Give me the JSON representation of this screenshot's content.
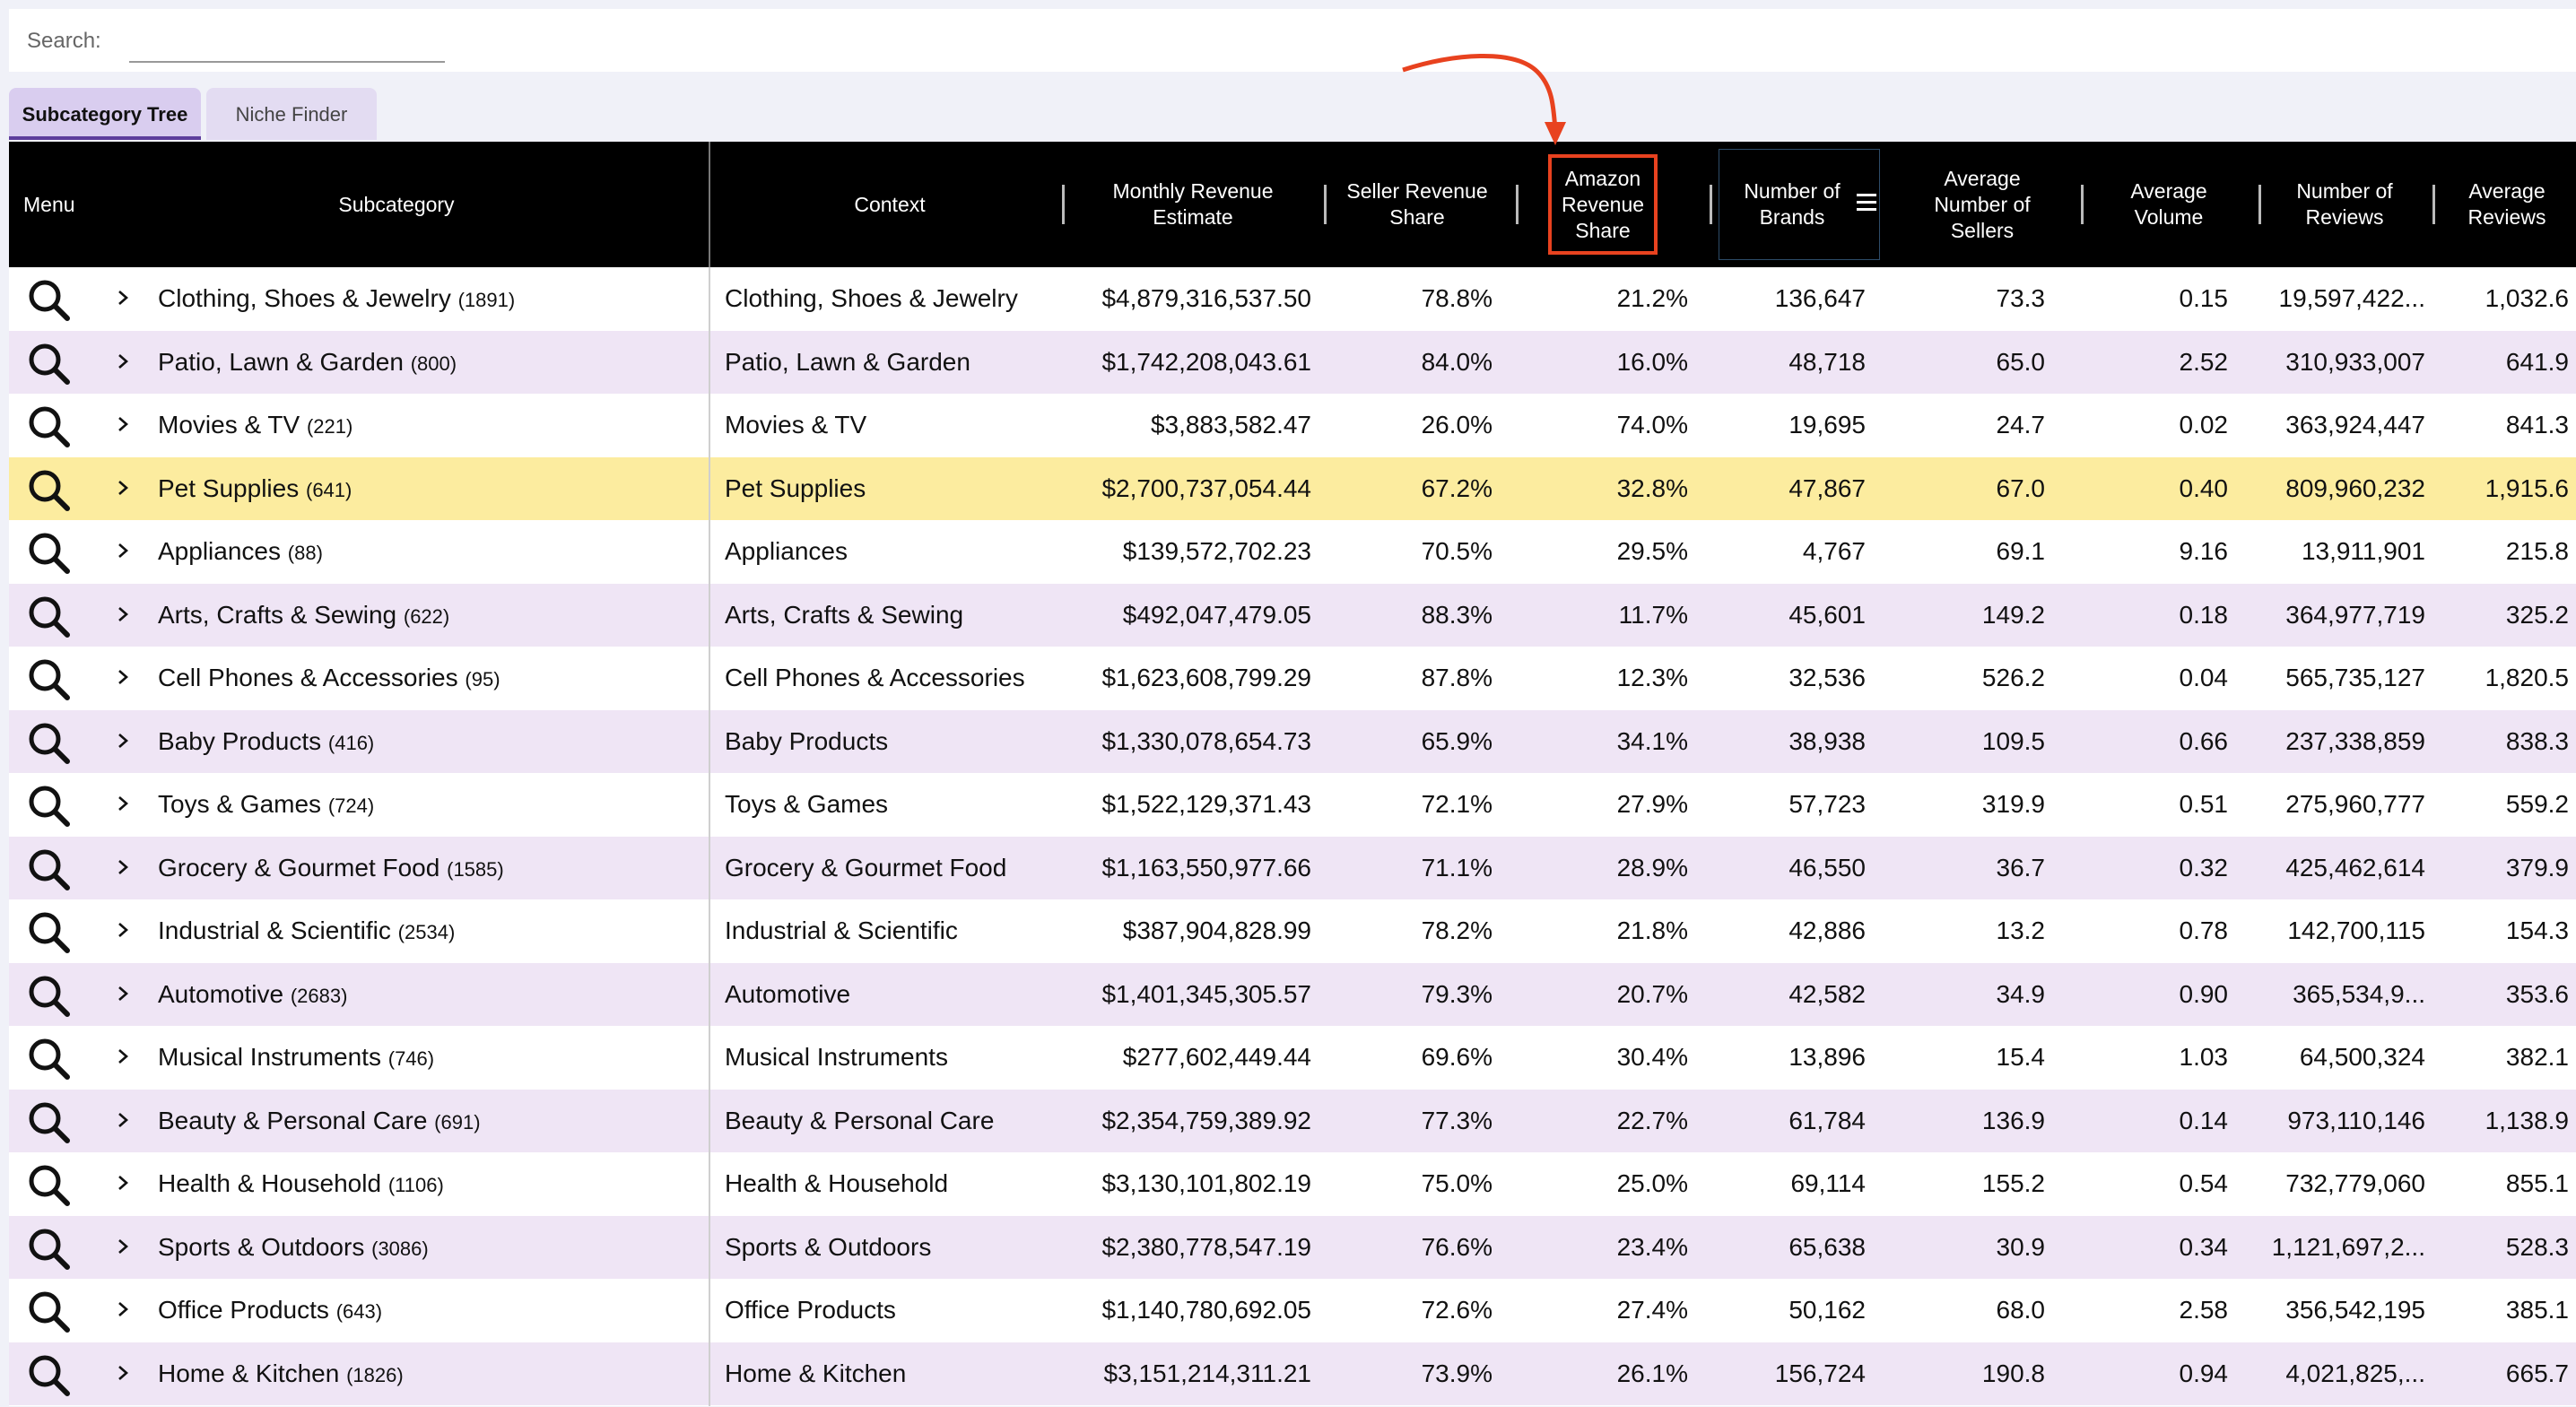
{
  "search": {
    "label": "Search:",
    "value": "",
    "placeholder": ""
  },
  "tabs": [
    {
      "label": "Subcategory Tree",
      "active": true
    },
    {
      "label": "Niche Finder",
      "active": false
    }
  ],
  "columns": {
    "menu": "Menu",
    "subcategory": "Subcategory",
    "context": "Context",
    "monthly_revenue": [
      "Monthly Revenue",
      "Estimate"
    ],
    "seller_share": [
      "Seller Revenue",
      "Share"
    ],
    "amazon_share": [
      "Amazon",
      "Revenue",
      "Share"
    ],
    "brands": [
      "Number of",
      "Brands"
    ],
    "sellers": [
      "Average",
      "Number of",
      "Sellers"
    ],
    "volume": [
      "Average",
      "Volume"
    ],
    "reviews": [
      "Number of",
      "Reviews"
    ],
    "avg_reviews": [
      "Average",
      "Reviews"
    ]
  },
  "colors": {
    "header_bg": "#000000",
    "row_alt": "#efe5f5",
    "row_selected": "#fcec9f",
    "highlight_box": "#e8421f",
    "annotation_arrow": "#e8421f",
    "tab_active_underline": "#5d3d9c"
  },
  "icons": {
    "row_search": "magnifier-icon",
    "row_expand": "chevron-right-icon",
    "column_menu": "menu-lines-icon"
  },
  "annotation": {
    "highlighted_column": "Amazon Revenue Share"
  },
  "rows": [
    {
      "name": "Clothing, Shoes & Jewelry",
      "count": "(1891)",
      "context": "Clothing, Shoes & Jewelry",
      "revenue": "$4,879,316,537.50",
      "seller_share": "78.8%",
      "amazon_share": "21.2%",
      "brands": "136,647",
      "sellers": "73.3",
      "volume": "0.15",
      "reviews": "19,597,422...",
      "avg_reviews": "1,032.6",
      "selected": false
    },
    {
      "name": "Patio, Lawn & Garden",
      "count": "(800)",
      "context": "Patio, Lawn & Garden",
      "revenue": "$1,742,208,043.61",
      "seller_share": "84.0%",
      "amazon_share": "16.0%",
      "brands": "48,718",
      "sellers": "65.0",
      "volume": "2.52",
      "reviews": "310,933,007",
      "avg_reviews": "641.9",
      "selected": false
    },
    {
      "name": "Movies & TV",
      "count": "(221)",
      "context": "Movies & TV",
      "revenue": "$3,883,582.47",
      "seller_share": "26.0%",
      "amazon_share": "74.0%",
      "brands": "19,695",
      "sellers": "24.7",
      "volume": "0.02",
      "reviews": "363,924,447",
      "avg_reviews": "841.3",
      "selected": false
    },
    {
      "name": "Pet Supplies",
      "count": "(641)",
      "context": "Pet Supplies",
      "revenue": "$2,700,737,054.44",
      "seller_share": "67.2%",
      "amazon_share": "32.8%",
      "brands": "47,867",
      "sellers": "67.0",
      "volume": "0.40",
      "reviews": "809,960,232",
      "avg_reviews": "1,915.6",
      "selected": true
    },
    {
      "name": "Appliances",
      "count": "(88)",
      "context": "Appliances",
      "revenue": "$139,572,702.23",
      "seller_share": "70.5%",
      "amazon_share": "29.5%",
      "brands": "4,767",
      "sellers": "69.1",
      "volume": "9.16",
      "reviews": "13,911,901",
      "avg_reviews": "215.8",
      "selected": false
    },
    {
      "name": "Arts, Crafts & Sewing",
      "count": "(622)",
      "context": "Arts, Crafts & Sewing",
      "revenue": "$492,047,479.05",
      "seller_share": "88.3%",
      "amazon_share": "11.7%",
      "brands": "45,601",
      "sellers": "149.2",
      "volume": "0.18",
      "reviews": "364,977,719",
      "avg_reviews": "325.2",
      "selected": false
    },
    {
      "name": "Cell Phones & Accessories",
      "count": "(95)",
      "context": "Cell Phones & Accessories",
      "revenue": "$1,623,608,799.29",
      "seller_share": "87.8%",
      "amazon_share": "12.3%",
      "brands": "32,536",
      "sellers": "526.2",
      "volume": "0.04",
      "reviews": "565,735,127",
      "avg_reviews": "1,820.5",
      "selected": false
    },
    {
      "name": "Baby Products",
      "count": "(416)",
      "context": "Baby Products",
      "revenue": "$1,330,078,654.73",
      "seller_share": "65.9%",
      "amazon_share": "34.1%",
      "brands": "38,938",
      "sellers": "109.5",
      "volume": "0.66",
      "reviews": "237,338,859",
      "avg_reviews": "838.3",
      "selected": false
    },
    {
      "name": "Toys & Games",
      "count": "(724)",
      "context": "Toys & Games",
      "revenue": "$1,522,129,371.43",
      "seller_share": "72.1%",
      "amazon_share": "27.9%",
      "brands": "57,723",
      "sellers": "319.9",
      "volume": "0.51",
      "reviews": "275,960,777",
      "avg_reviews": "559.2",
      "selected": false
    },
    {
      "name": "Grocery & Gourmet Food",
      "count": "(1585)",
      "context": "Grocery & Gourmet Food",
      "revenue": "$1,163,550,977.66",
      "seller_share": "71.1%",
      "amazon_share": "28.9%",
      "brands": "46,550",
      "sellers": "36.7",
      "volume": "0.32",
      "reviews": "425,462,614",
      "avg_reviews": "379.9",
      "selected": false
    },
    {
      "name": "Industrial & Scientific",
      "count": "(2534)",
      "context": "Industrial & Scientific",
      "revenue": "$387,904,828.99",
      "seller_share": "78.2%",
      "amazon_share": "21.8%",
      "brands": "42,886",
      "sellers": "13.2",
      "volume": "0.78",
      "reviews": "142,700,115",
      "avg_reviews": "154.3",
      "selected": false
    },
    {
      "name": "Automotive",
      "count": "(2683)",
      "context": "Automotive",
      "revenue": "$1,401,345,305.57",
      "seller_share": "79.3%",
      "amazon_share": "20.7%",
      "brands": "42,582",
      "sellers": "34.9",
      "volume": "0.90",
      "reviews": "365,534,9...",
      "avg_reviews": "353.6",
      "selected": false
    },
    {
      "name": "Musical Instruments",
      "count": "(746)",
      "context": "Musical Instruments",
      "revenue": "$277,602,449.44",
      "seller_share": "69.6%",
      "amazon_share": "30.4%",
      "brands": "13,896",
      "sellers": "15.4",
      "volume": "1.03",
      "reviews": "64,500,324",
      "avg_reviews": "382.1",
      "selected": false
    },
    {
      "name": "Beauty & Personal Care",
      "count": "(691)",
      "context": "Beauty & Personal Care",
      "revenue": "$2,354,759,389.92",
      "seller_share": "77.3%",
      "amazon_share": "22.7%",
      "brands": "61,784",
      "sellers": "136.9",
      "volume": "0.14",
      "reviews": "973,110,146",
      "avg_reviews": "1,138.9",
      "selected": false
    },
    {
      "name": "Health & Household",
      "count": "(1106)",
      "context": "Health & Household",
      "revenue": "$3,130,101,802.19",
      "seller_share": "75.0%",
      "amazon_share": "25.0%",
      "brands": "69,114",
      "sellers": "155.2",
      "volume": "0.54",
      "reviews": "732,779,060",
      "avg_reviews": "855.1",
      "selected": false
    },
    {
      "name": "Sports & Outdoors",
      "count": "(3086)",
      "context": "Sports & Outdoors",
      "revenue": "$2,380,778,547.19",
      "seller_share": "76.6%",
      "amazon_share": "23.4%",
      "brands": "65,638",
      "sellers": "30.9",
      "volume": "0.34",
      "reviews": "1,121,697,2...",
      "avg_reviews": "528.3",
      "selected": false
    },
    {
      "name": "Office Products",
      "count": "(643)",
      "context": "Office Products",
      "revenue": "$1,140,780,692.05",
      "seller_share": "72.6%",
      "amazon_share": "27.4%",
      "brands": "50,162",
      "sellers": "68.0",
      "volume": "2.58",
      "reviews": "356,542,195",
      "avg_reviews": "385.1",
      "selected": false
    },
    {
      "name": "Home & Kitchen",
      "count": "(1826)",
      "context": "Home & Kitchen",
      "revenue": "$3,151,214,311.21",
      "seller_share": "73.9%",
      "amazon_share": "26.1%",
      "brands": "156,724",
      "sellers": "190.8",
      "volume": "0.94",
      "reviews": "4,021,825,...",
      "avg_reviews": "665.7",
      "selected": false
    }
  ]
}
